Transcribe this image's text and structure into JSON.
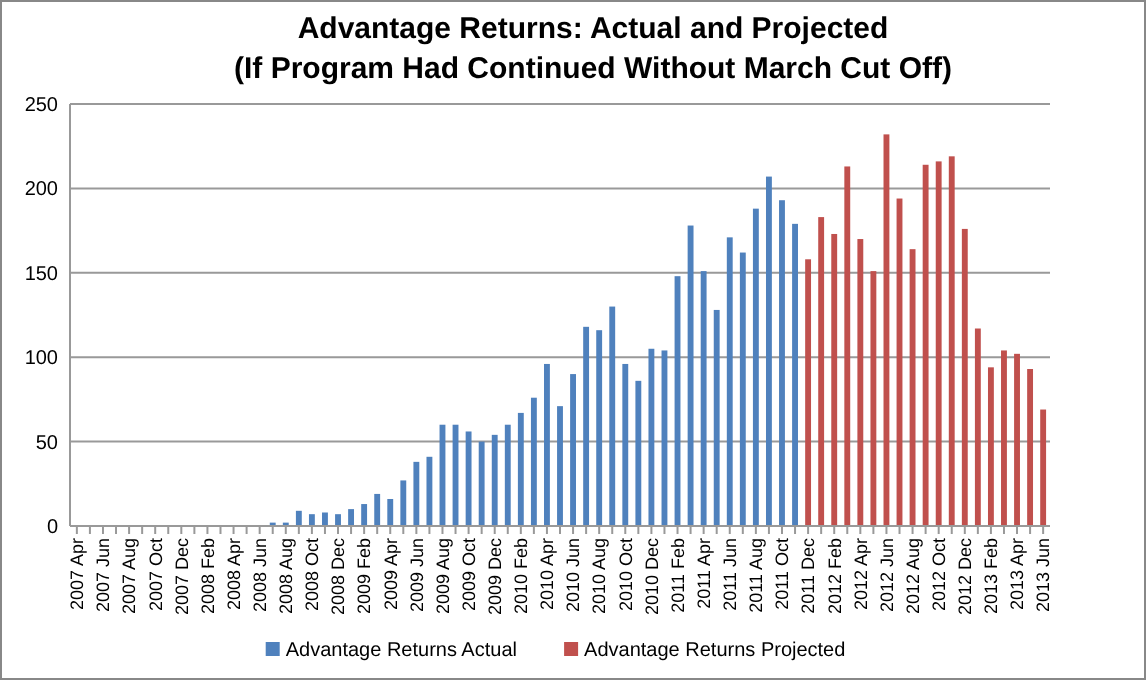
{
  "chart_data": {
    "type": "bar",
    "title": "Advantage Returns: Actual and Projected\n(If Program Had Continued Without March Cut Off)",
    "categories": [
      "2007 Apr",
      null,
      "2007 Jun",
      null,
      "2007 Aug",
      null,
      "2007 Oct",
      null,
      "2007 Dec",
      null,
      "2008 Feb",
      null,
      "2008 Apr",
      null,
      "2008 Jun",
      null,
      "2008 Aug",
      null,
      "2008 Oct",
      null,
      "2008 Dec",
      null,
      "2009 Feb",
      null,
      "2009 Apr",
      null,
      "2009 Jun",
      null,
      "2009 Aug",
      null,
      "2009 Oct",
      null,
      "2009 Dec",
      null,
      "2010 Feb",
      null,
      "2010 Apr",
      null,
      "2010 Jun",
      null,
      "2010 Aug",
      null,
      "2010 Oct",
      null,
      "2010 Dec",
      null,
      "2011 Feb",
      null,
      "2011 Apr",
      null,
      "2011 Jun",
      null,
      "2011 Aug",
      null,
      "2011 Oct",
      null,
      "2011 Dec",
      null,
      "2012 Feb",
      null,
      "2012 Apr",
      null,
      "2012 Jun",
      null,
      "2012 Aug",
      null,
      "2012 Oct",
      null,
      "2012 Dec",
      null,
      "2013 Feb",
      null,
      "2013 Apr",
      null,
      "2013 Jun"
    ],
    "series": [
      {
        "name": "Advantage Returns Actual",
        "color": "#4f81bd",
        "values": [
          0,
          0,
          0,
          0,
          0,
          0,
          0,
          0,
          0,
          0,
          0,
          0,
          0,
          0,
          0,
          2,
          2,
          9,
          7,
          8,
          7,
          10,
          13,
          19,
          16,
          27,
          38,
          41,
          60,
          60,
          56,
          50,
          54,
          60,
          67,
          76,
          96,
          71,
          90,
          118,
          116,
          130,
          96,
          86,
          105,
          104,
          148,
          178,
          151,
          128,
          171,
          162,
          188,
          207,
          193,
          179,
          null,
          null,
          null,
          null,
          null,
          null,
          null,
          null,
          null,
          null,
          null,
          null,
          null,
          null,
          null,
          null,
          null,
          null,
          null
        ]
      },
      {
        "name": "Advantage Returns Projected",
        "color": "#c0504d",
        "values": [
          null,
          null,
          null,
          null,
          null,
          null,
          null,
          null,
          null,
          null,
          null,
          null,
          null,
          null,
          null,
          null,
          null,
          null,
          null,
          null,
          null,
          null,
          null,
          null,
          null,
          null,
          null,
          null,
          null,
          null,
          null,
          null,
          null,
          null,
          null,
          null,
          null,
          null,
          null,
          null,
          null,
          null,
          null,
          null,
          null,
          null,
          null,
          null,
          null,
          null,
          null,
          null,
          null,
          null,
          null,
          null,
          158,
          183,
          173,
          213,
          170,
          151,
          232,
          194,
          164,
          214,
          216,
          219,
          176,
          117,
          94,
          104,
          102,
          93,
          69
        ]
      }
    ],
    "ylim": [
      0,
      250
    ],
    "yticks": [
      0,
      50,
      100,
      150,
      200,
      250
    ],
    "grid": "y",
    "legend": "bottom"
  }
}
